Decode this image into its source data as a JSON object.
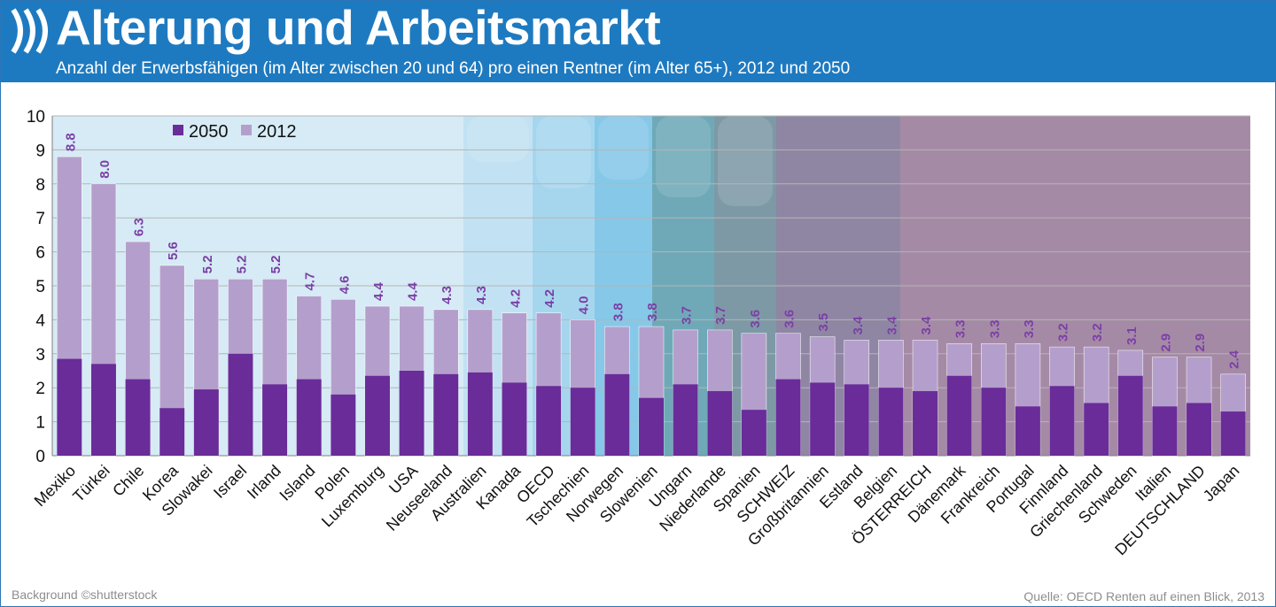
{
  "header": {
    "title": "Alterung und Arbeitsmarkt",
    "subtitle": "Anzahl der Erwerbsfähigen (im Alter zwischen 20 und 64) pro einen Rentner (im Alter 65+), 2012 und 2050"
  },
  "footer": {
    "background_credit": "Background ©shutterstock",
    "source": "Quelle: OECD   Renten auf einen Blick, 2013"
  },
  "colors": {
    "header": "#1e7ac0",
    "series_2050": "#6a2c99",
    "series_2012": "#b49fcc",
    "data_label": "#7b3fa6"
  },
  "chart_data": {
    "type": "bar",
    "stacked": false,
    "overlapping": true,
    "ylim": [
      0,
      10
    ],
    "yticks": [
      0,
      1,
      2,
      3,
      4,
      5,
      6,
      7,
      8,
      9,
      10
    ],
    "grid": true,
    "legend_position": "top-left",
    "categories": [
      "Mexiko",
      "Türkei",
      "Chile",
      "Korea",
      "Slowakei",
      "Israel",
      "Irland",
      "Island",
      "Polen",
      "Luxemburg",
      "USA",
      "Neuseeland",
      "Australien",
      "Kanada",
      "OECD",
      "Tschechien",
      "Norwegen",
      "Slowenien",
      "Ungarn",
      "Niederlande",
      "Spanien",
      "SCHWEIZ",
      "Großbritannien",
      "Estland",
      "Belgien",
      "ÖSTERREICH",
      "Dänemark",
      "Frankreich",
      "Portugal",
      "Finnland",
      "Griechenland",
      "Schweden",
      "Italien",
      "DEUTSCHLAND",
      "Japan"
    ],
    "series": [
      {
        "name": "2050",
        "values": [
          2.85,
          2.7,
          2.25,
          1.4,
          1.95,
          3.0,
          2.1,
          2.25,
          1.8,
          2.35,
          2.5,
          2.4,
          2.45,
          2.15,
          2.05,
          2.0,
          2.4,
          1.7,
          2.1,
          1.9,
          1.35,
          2.25,
          2.15,
          2.1,
          2.0,
          1.9,
          2.35,
          2.0,
          1.45,
          2.05,
          1.55,
          2.35,
          1.45,
          1.55,
          1.3
        ]
      },
      {
        "name": "2012",
        "values": [
          8.8,
          8.0,
          6.3,
          5.6,
          5.2,
          5.2,
          5.2,
          4.7,
          4.6,
          4.4,
          4.4,
          4.3,
          4.3,
          4.2,
          4.2,
          4.0,
          3.8,
          3.8,
          3.7,
          3.7,
          3.6,
          3.6,
          3.5,
          3.4,
          3.4,
          3.4,
          3.3,
          3.3,
          3.3,
          3.2,
          3.2,
          3.1,
          2.9,
          2.9,
          2.4
        ],
        "data_labels": [
          "8.8",
          "8.0",
          "6.3",
          "5.6",
          "5.2",
          "5.2",
          "5.2",
          "4.7",
          "4.6",
          "4.4",
          "4.4",
          "4.3",
          "4.3",
          "4.2",
          "4.2",
          "4.0",
          "3.8",
          "3.8",
          "3.7",
          "3.7",
          "3.6",
          "3.6",
          "3.5",
          "3.4",
          "3.4",
          "3.4",
          "3.3",
          "3.3",
          "3.3",
          "3.2",
          "3.2",
          "3.1",
          "2.9",
          "2.9",
          "2.4"
        ]
      }
    ]
  }
}
